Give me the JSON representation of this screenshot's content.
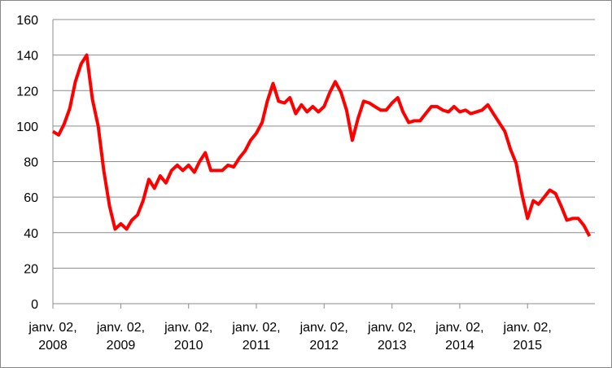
{
  "chart_data": {
    "type": "line",
    "x": [
      "2008-01-02",
      "2008-02-02",
      "2008-03-02",
      "2008-04-02",
      "2008-05-02",
      "2008-06-02",
      "2008-07-02",
      "2008-08-02",
      "2008-09-02",
      "2008-10-02",
      "2008-11-02",
      "2008-12-02",
      "2009-01-02",
      "2009-02-02",
      "2009-03-02",
      "2009-04-02",
      "2009-05-02",
      "2009-06-02",
      "2009-07-02",
      "2009-08-02",
      "2009-09-02",
      "2009-10-02",
      "2009-11-02",
      "2009-12-02",
      "2010-01-02",
      "2010-02-02",
      "2010-03-02",
      "2010-04-02",
      "2010-05-02",
      "2010-06-02",
      "2010-07-02",
      "2010-08-02",
      "2010-09-02",
      "2010-10-02",
      "2010-11-02",
      "2010-12-02",
      "2011-01-02",
      "2011-02-02",
      "2011-03-02",
      "2011-04-02",
      "2011-05-02",
      "2011-06-02",
      "2011-07-02",
      "2011-08-02",
      "2011-09-02",
      "2011-10-02",
      "2011-11-02",
      "2011-12-02",
      "2012-01-02",
      "2012-02-02",
      "2012-03-02",
      "2012-04-02",
      "2012-05-02",
      "2012-06-02",
      "2012-07-02",
      "2012-08-02",
      "2012-09-02",
      "2012-10-02",
      "2012-11-02",
      "2012-12-02",
      "2013-01-02",
      "2013-02-02",
      "2013-03-02",
      "2013-04-02",
      "2013-05-02",
      "2013-06-02",
      "2013-07-02",
      "2013-08-02",
      "2013-09-02",
      "2013-10-02",
      "2013-11-02",
      "2013-12-02",
      "2014-01-02",
      "2014-02-02",
      "2014-03-02",
      "2014-04-02",
      "2014-05-02",
      "2014-06-02",
      "2014-07-02",
      "2014-08-02",
      "2014-09-02",
      "2014-10-02",
      "2014-11-02",
      "2014-12-02",
      "2015-01-02",
      "2015-02-02",
      "2015-03-02",
      "2015-04-02",
      "2015-05-02",
      "2015-06-02",
      "2015-07-02",
      "2015-08-02",
      "2015-09-02",
      "2015-10-02",
      "2015-11-02",
      "2015-12-02"
    ],
    "series": [
      {
        "color": "#ff0000",
        "values": [
          97,
          95,
          101,
          110,
          125,
          135,
          140,
          115,
          100,
          75,
          55,
          42,
          45,
          42,
          47,
          50,
          58,
          70,
          65,
          72,
          68,
          75,
          78,
          75,
          78,
          74,
          80,
          85,
          75,
          75,
          75,
          78,
          77,
          82,
          86,
          92,
          96,
          102,
          114,
          124,
          114,
          113,
          116,
          107,
          112,
          108,
          111,
          108,
          111,
          119,
          125,
          119,
          109,
          92,
          104,
          114,
          113,
          111,
          109,
          109,
          113,
          116,
          108,
          102,
          103,
          103,
          107,
          111,
          111,
          109,
          108,
          111,
          108,
          109,
          107,
          108,
          109,
          112,
          107,
          102,
          97,
          87,
          79,
          62,
          48,
          58,
          56,
          60,
          64,
          62,
          55,
          47,
          48,
          48,
          44,
          38
        ]
      }
    ],
    "xlim": [
      "2008-01-02",
      "2015-12-31"
    ],
    "xticks": [
      {
        "value": "2008-01-02",
        "label": "janv. 02, 2008"
      },
      {
        "value": "2009-01-02",
        "label": "janv. 02, 2009"
      },
      {
        "value": "2010-01-02",
        "label": "janv. 02, 2010"
      },
      {
        "value": "2011-01-02",
        "label": "janv. 02, 2011"
      },
      {
        "value": "2012-01-02",
        "label": "janv. 02, 2012"
      },
      {
        "value": "2013-01-02",
        "label": "janv. 02, 2013"
      },
      {
        "value": "2014-01-02",
        "label": "janv. 02, 2014"
      },
      {
        "value": "2015-01-02",
        "label": "janv. 02, 2015"
      }
    ],
    "ylim": [
      0,
      160
    ],
    "yticks": [
      0,
      20,
      40,
      60,
      80,
      100,
      120,
      140,
      160
    ],
    "grid": true
  }
}
